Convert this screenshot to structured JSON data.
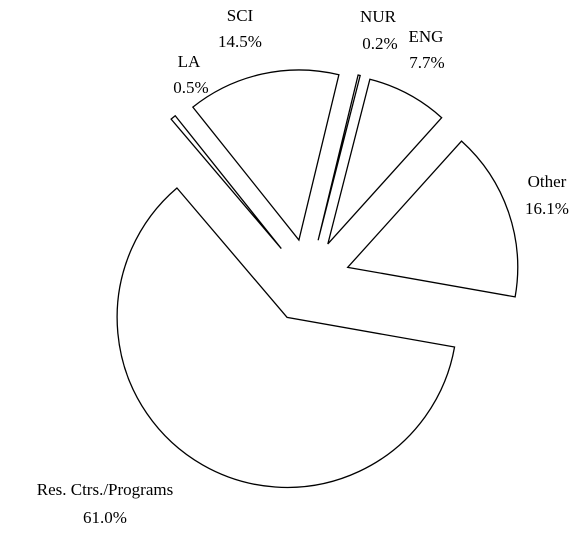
{
  "chart_data": {
    "type": "pie",
    "categories": [
      "Res. Ctrs./Programs",
      "Other",
      "ENG",
      "NUR",
      "SCI",
      "LA"
    ],
    "values": [
      61.0,
      16.1,
      7.7,
      0.2,
      14.5,
      0.5
    ],
    "value_labels": [
      "61.0%",
      "16.1%",
      "7.7%",
      "0.2%",
      "14.5%",
      "0.5%"
    ],
    "fill": "#ffffff",
    "stroke": "#000000",
    "exploded": true
  }
}
